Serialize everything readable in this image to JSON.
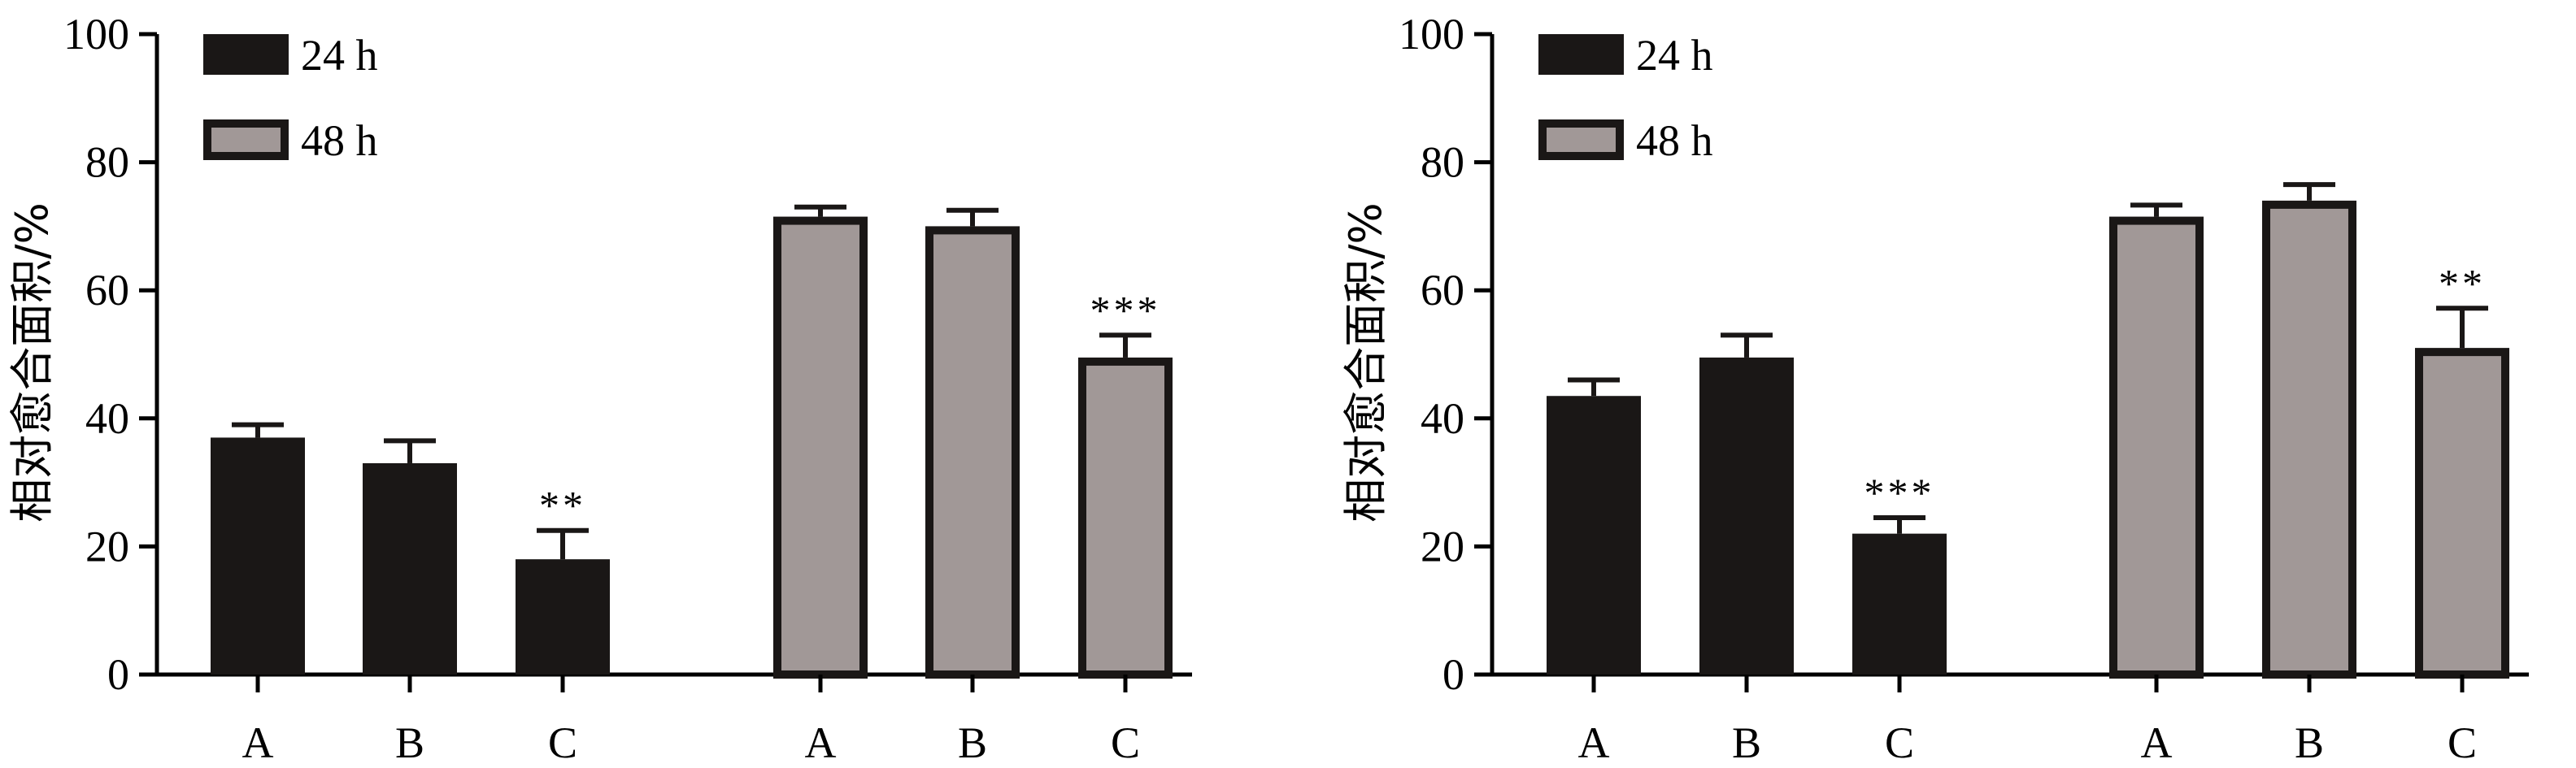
{
  "colors": {
    "series_24h": "#1a1716",
    "series_48h": "#a19897",
    "outline": "#1a1716"
  },
  "chart_data": [
    {
      "type": "bar",
      "ylabel": "相对愈合面积/%",
      "ylim": [
        0,
        100
      ],
      "yticks": [
        "0",
        "20",
        "40",
        "60",
        "80",
        "100"
      ],
      "legend_position": "top-left",
      "series": [
        {
          "name": "24 h",
          "categories": [
            "A",
            "B",
            "C"
          ],
          "values": [
            37,
            33,
            18
          ],
          "errors": [
            2,
            3.5,
            4.5
          ],
          "significance": [
            "",
            "",
            "**"
          ]
        },
        {
          "name": "48 h",
          "categories": [
            "A",
            "B",
            "C"
          ],
          "values": [
            71.5,
            70,
            49.5
          ],
          "errors": [
            1.5,
            2.5,
            3.5
          ],
          "significance": [
            "",
            "",
            "***"
          ]
        }
      ]
    },
    {
      "type": "bar",
      "ylabel": "相对愈合面积/%",
      "ylim": [
        0,
        100
      ],
      "yticks": [
        "0",
        "20",
        "40",
        "60",
        "80",
        "100"
      ],
      "legend_position": "top-left",
      "series": [
        {
          "name": "24 h",
          "categories": [
            "A",
            "B",
            "C"
          ],
          "values": [
            43.5,
            49.5,
            22
          ],
          "errors": [
            2.5,
            3.5,
            2.5
          ],
          "significance": [
            "",
            "",
            "***"
          ]
        },
        {
          "name": "48 h",
          "categories": [
            "A",
            "B",
            "C"
          ],
          "values": [
            71.5,
            74,
            51
          ],
          "errors": [
            1.8,
            2.5,
            6.2
          ],
          "significance": [
            "",
            "",
            "**"
          ]
        }
      ]
    }
  ]
}
